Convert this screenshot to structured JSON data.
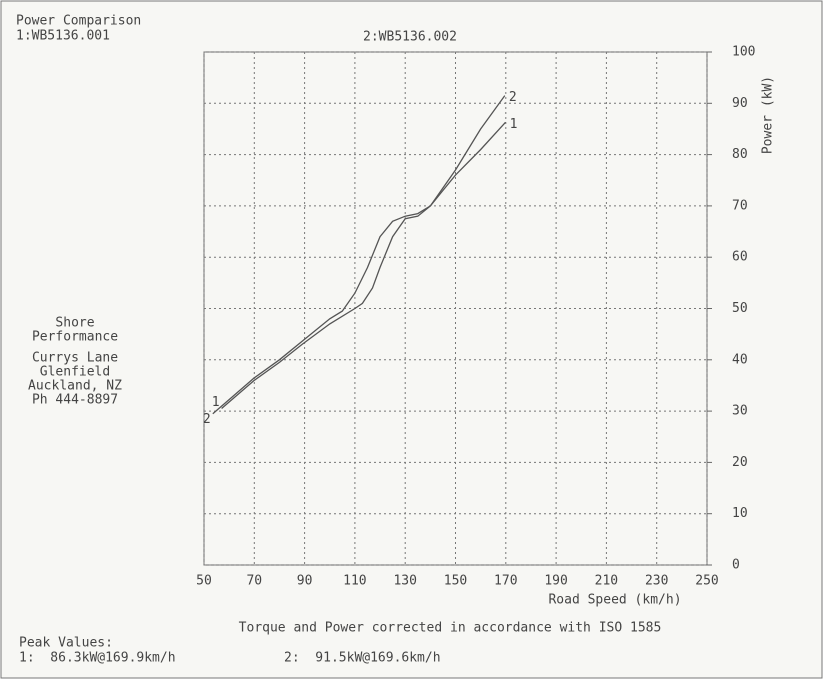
{
  "chart_data": {
    "type": "line",
    "title": "Power Comparison",
    "file_labels": [
      "1:WB5136.001",
      "2:WB5136.002"
    ],
    "shop_info": [
      "Shore",
      "Performance",
      "Currys Lane",
      "Glenfield",
      "Auckland, NZ",
      "Ph 444-8897"
    ],
    "x_label": "Road Speed (km/h)",
    "y_label": "Power (kW)",
    "y_axis_side": "right",
    "xlim": [
      50,
      250
    ],
    "xticks": [
      50,
      70,
      90,
      110,
      130,
      150,
      170,
      190,
      210,
      230,
      250
    ],
    "ylim": [
      0,
      100
    ],
    "yticks": [
      0,
      10,
      20,
      30,
      40,
      50,
      60,
      70,
      80,
      90,
      100
    ],
    "grid": true,
    "series": [
      {
        "name": "1",
        "color": "#555555",
        "x": [
          57,
          70,
          80,
          89,
          100,
          110,
          113,
          117,
          120,
          125,
          130,
          135,
          140,
          145,
          150,
          160,
          169.9
        ],
        "values": [
          30.5,
          36,
          39.5,
          43,
          47,
          50,
          51,
          54,
          58,
          64,
          67.5,
          68,
          70,
          73,
          76,
          81,
          86.3
        ]
      },
      {
        "name": "2",
        "color": "#555555",
        "x": [
          53.5,
          70,
          80,
          90,
          100,
          105,
          110,
          115,
          120,
          125,
          130,
          135,
          140,
          150,
          160,
          169.6
        ],
        "values": [
          29.5,
          36.5,
          40,
          44,
          48,
          49.5,
          53,
          58,
          64,
          67,
          68,
          68.5,
          70,
          77,
          85,
          91.5
        ]
      }
    ],
    "footnote": "Torque and Power corrected in accordance with ISO 1585",
    "peak_title": "Peak Values:",
    "peak_values": [
      "1:  86.3kW@169.9km/h",
      "2:  91.5kW@169.6km/h"
    ]
  }
}
